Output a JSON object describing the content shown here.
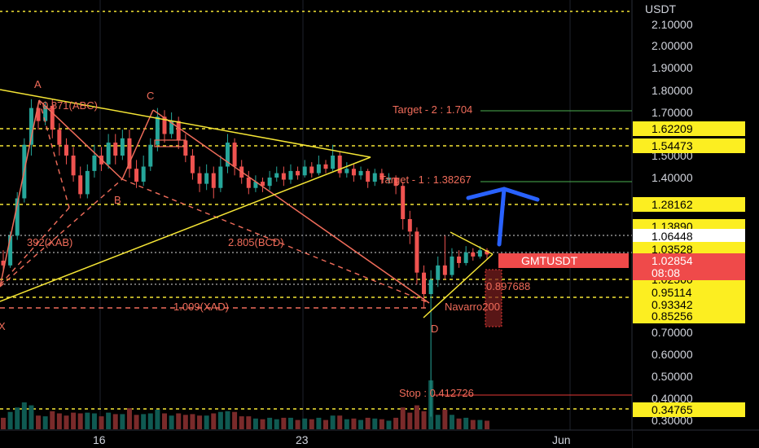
{
  "chart_data": {
    "type": "candlestick",
    "symbol": "GMTUSDT",
    "currency": "USDT",
    "current_price": "1.02854",
    "countdown": "08:08",
    "price_axis": {
      "ticks": [
        "2.10000",
        "2.00000",
        "1.90000",
        "1.80000",
        "1.70000",
        "1.50000",
        "1.40000",
        "0.70000",
        "0.60000",
        "0.50000",
        "0.40000",
        "0.30000"
      ]
    },
    "time_axis": {
      "labels": [
        "16",
        "23",
        "Jun"
      ]
    },
    "level_tags": [
      {
        "price": 1.62209,
        "text": "1.62209"
      },
      {
        "price": 1.54473,
        "text": "1.54473"
      },
      {
        "price": 1.28162,
        "text": "1.28162"
      },
      {
        "price": 1.1389,
        "text": "1.13890"
      },
      {
        "price": 1.06448,
        "text": "1.06448",
        "style": "white"
      },
      {
        "price": 1.03528,
        "text": "1.03528"
      },
      {
        "price": 1.0256,
        "text": "1.02560"
      },
      {
        "price": 0.95114,
        "text": "0.95114"
      },
      {
        "price": 0.93342,
        "text": "0.93342"
      },
      {
        "price": 0.85256,
        "text": "0.85256"
      },
      {
        "price": 0.34765,
        "text": "0.34765"
      }
    ],
    "harmonic_points": [
      "A",
      "B",
      "C",
      "D",
      "X"
    ],
    "harmonic_ratios": [
      "0.871(ABC)",
      "392(XAB)",
      "2.805(BCD)",
      "1.009(XAD)"
    ],
    "annotations": {
      "target2": "Target - 2 : 1.704",
      "target1": "Target - 1 : 1.38267",
      "stop": "Stop : 0.412726",
      "navarro": "Navarro200",
      "small_level": "0.897688"
    },
    "ohlc": [
      [
        1.0,
        0.98,
        1.05,
        0.96
      ],
      [
        0.98,
        1.12,
        1.14,
        0.97
      ],
      [
        1.12,
        1.3,
        1.33,
        1.1
      ],
      [
        1.3,
        1.55,
        1.58,
        1.28
      ],
      [
        1.55,
        1.72,
        1.76,
        1.5
      ],
      [
        1.72,
        1.66,
        1.74,
        1.62
      ],
      [
        1.66,
        1.73,
        1.75,
        1.64
      ],
      [
        1.73,
        1.62,
        1.76,
        1.58
      ],
      [
        1.62,
        1.55,
        1.65,
        1.5
      ],
      [
        1.55,
        1.5,
        1.58,
        1.46
      ],
      [
        1.5,
        1.41,
        1.54,
        1.38
      ],
      [
        1.41,
        1.32,
        1.45,
        1.3
      ],
      [
        1.32,
        1.43,
        1.46,
        1.3
      ],
      [
        1.43,
        1.5,
        1.55,
        1.4
      ],
      [
        1.5,
        1.46,
        1.54,
        1.43
      ],
      [
        1.46,
        1.56,
        1.6,
        1.44
      ],
      [
        1.56,
        1.5,
        1.6,
        1.46
      ],
      [
        1.5,
        1.58,
        1.62,
        1.48
      ],
      [
        1.58,
        1.44,
        1.62,
        1.4
      ],
      [
        1.44,
        1.38,
        1.48,
        1.35
      ],
      [
        1.38,
        1.45,
        1.5,
        1.36
      ],
      [
        1.45,
        1.55,
        1.58,
        1.43
      ],
      [
        1.55,
        1.68,
        1.72,
        1.52
      ],
      [
        1.68,
        1.6,
        1.71,
        1.56
      ],
      [
        1.6,
        1.66,
        1.7,
        1.58
      ],
      [
        1.66,
        1.57,
        1.68,
        1.53
      ],
      [
        1.57,
        1.5,
        1.6,
        1.47
      ],
      [
        1.5,
        1.42,
        1.53,
        1.39
      ],
      [
        1.42,
        1.37,
        1.45,
        1.33
      ],
      [
        1.37,
        1.42,
        1.46,
        1.34
      ],
      [
        1.42,
        1.35,
        1.45,
        1.3
      ],
      [
        1.35,
        1.45,
        1.5,
        1.33
      ],
      [
        1.45,
        1.56,
        1.6,
        1.42
      ],
      [
        1.56,
        1.45,
        1.58,
        1.41
      ],
      [
        1.45,
        1.4,
        1.48,
        1.37
      ],
      [
        1.4,
        1.35,
        1.43,
        1.32
      ],
      [
        1.35,
        1.38,
        1.41,
        1.33
      ],
      [
        1.38,
        1.36,
        1.4,
        1.33
      ],
      [
        1.36,
        1.4,
        1.43,
        1.34
      ],
      [
        1.4,
        1.42,
        1.45,
        1.38
      ],
      [
        1.42,
        1.39,
        1.45,
        1.36
      ],
      [
        1.39,
        1.43,
        1.46,
        1.37
      ],
      [
        1.43,
        1.41,
        1.45,
        1.39
      ],
      [
        1.41,
        1.45,
        1.48,
        1.4
      ],
      [
        1.45,
        1.42,
        1.47,
        1.4
      ],
      [
        1.42,
        1.46,
        1.5,
        1.41
      ],
      [
        1.46,
        1.44,
        1.48,
        1.42
      ],
      [
        1.44,
        1.5,
        1.55,
        1.43
      ],
      [
        1.5,
        1.42,
        1.52,
        1.4
      ],
      [
        1.42,
        1.44,
        1.47,
        1.4
      ],
      [
        1.44,
        1.41,
        1.46,
        1.38
      ],
      [
        1.41,
        1.43,
        1.45,
        1.39
      ],
      [
        1.43,
        1.38,
        1.44,
        1.35
      ],
      [
        1.38,
        1.42,
        1.44,
        1.36
      ],
      [
        1.42,
        1.39,
        1.44,
        1.37
      ],
      [
        1.39,
        1.4,
        1.42,
        1.37
      ],
      [
        1.4,
        1.36,
        1.41,
        1.32
      ],
      [
        1.36,
        1.2,
        1.38,
        1.15
      ],
      [
        1.2,
        1.14,
        1.24,
        1.08
      ],
      [
        1.14,
        0.95,
        1.16,
        0.9
      ],
      [
        0.95,
        0.86,
        0.98,
        0.8
      ],
      [
        0.86,
        0.92,
        0.96,
        0.32
      ],
      [
        0.92,
        0.98,
        1.02,
        0.89
      ],
      [
        0.98,
        0.94,
        1.12,
        0.92
      ],
      [
        0.94,
        1.02,
        1.06,
        0.93
      ],
      [
        1.02,
        0.99,
        1.05,
        0.97
      ],
      [
        0.99,
        1.04,
        1.07,
        0.98
      ],
      [
        1.04,
        1.02,
        1.06,
        1.0
      ],
      [
        1.02,
        1.05,
        1.07,
        1.01
      ],
      [
        1.05,
        1.03,
        1.06,
        1.01
      ]
    ]
  }
}
